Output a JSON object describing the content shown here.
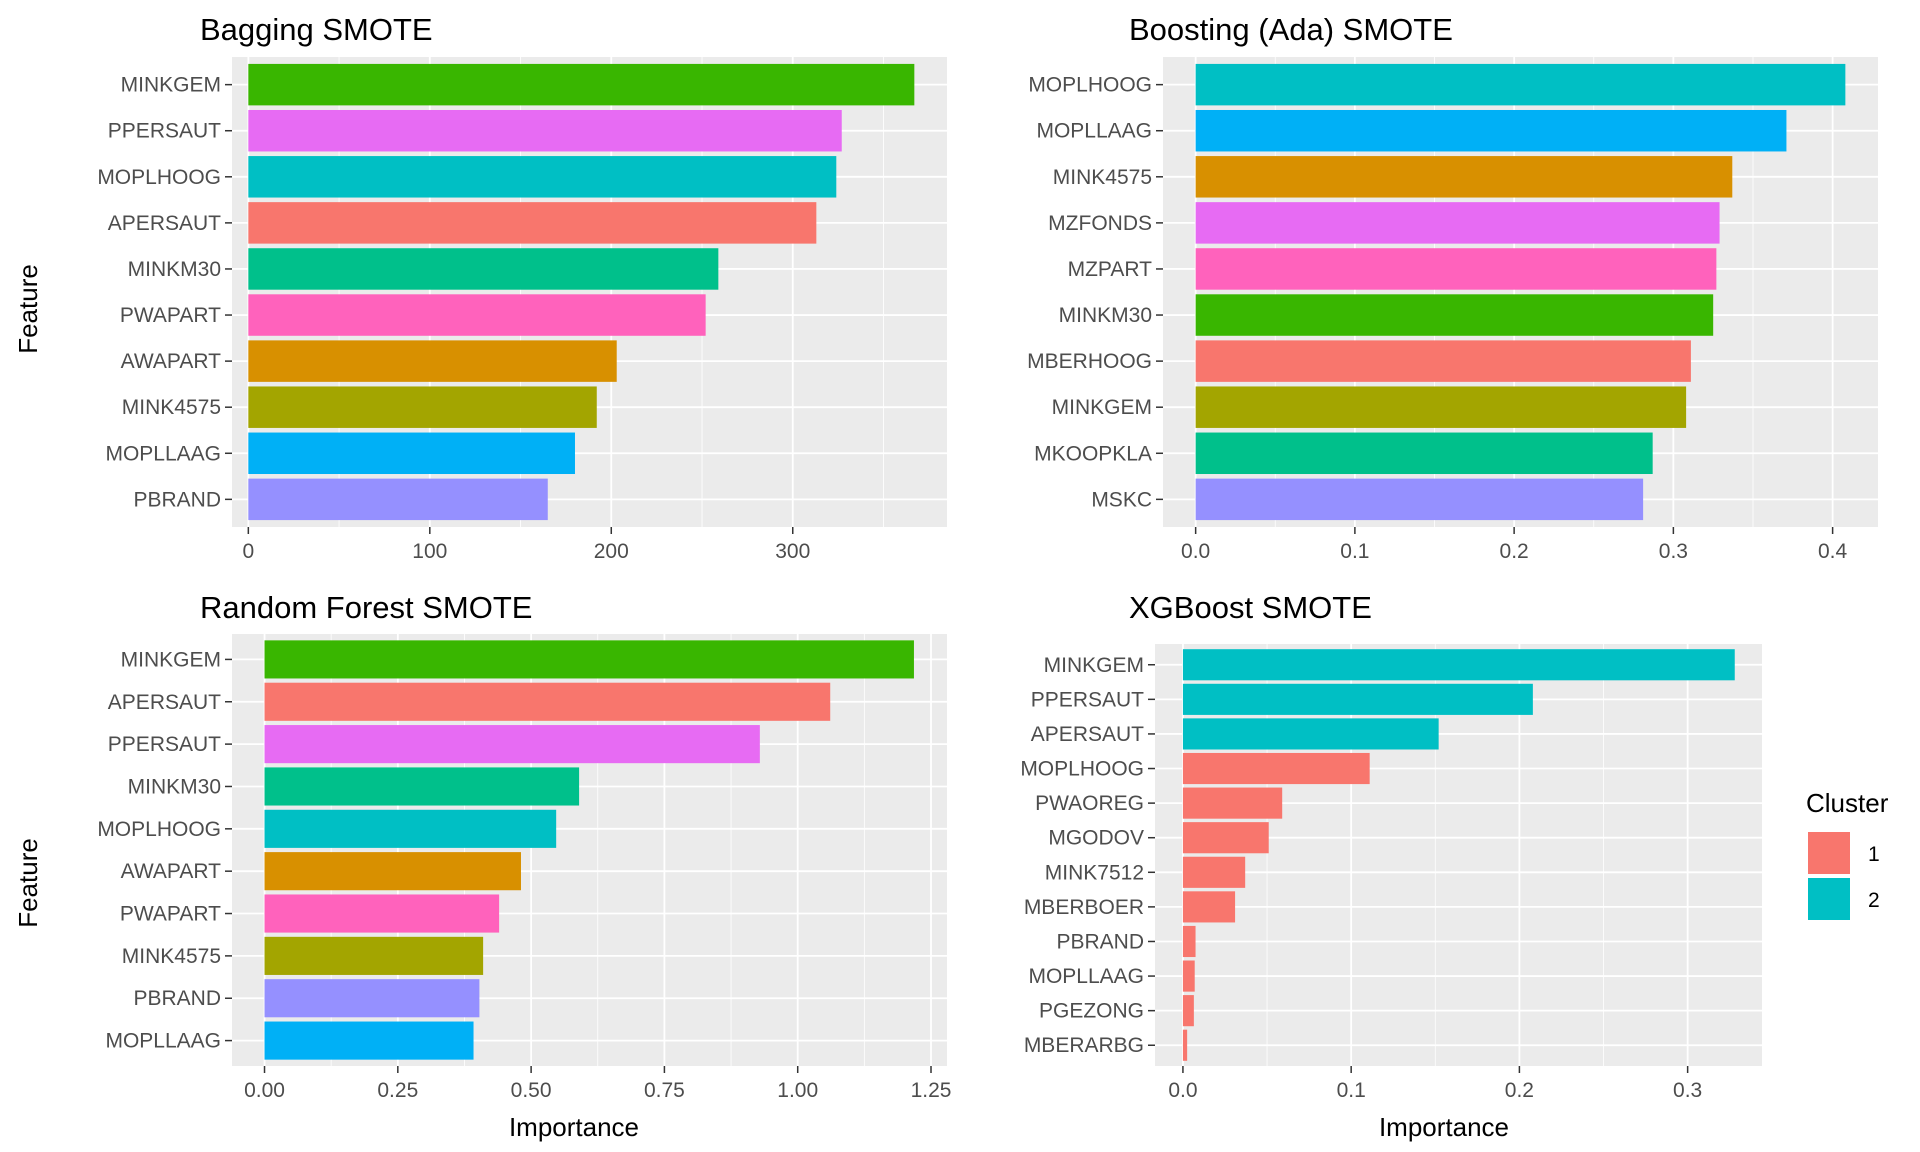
{
  "chart_data": [
    {
      "type": "bar",
      "orientation": "horizontal",
      "title": "Bagging SMOTE",
      "xlabel": "",
      "ylabel": "Feature",
      "xlim": [
        -9,
        385
      ],
      "xticks": [
        0,
        100,
        200,
        300
      ],
      "xtick_labels": [
        "0",
        "100",
        "200",
        "300"
      ],
      "grid": true,
      "categories": [
        "MINKGEM",
        "PPERSAUT",
        "MOPLHOOG",
        "APERSAUT",
        "MINKM30",
        "PWAPART",
        "AWAPART",
        "MINK4575",
        "MOPLLAAG",
        "PBRAND"
      ],
      "values": [
        367,
        327,
        324,
        313,
        259,
        252,
        203,
        192,
        180,
        165
      ],
      "colors": [
        "#39B600",
        "#E76BF3",
        "#00BFC4",
        "#F8766D",
        "#00C08B",
        "#FF62BC",
        "#D89000",
        "#A3A500",
        "#00B0F6",
        "#9590FF"
      ]
    },
    {
      "type": "bar",
      "orientation": "horizontal",
      "title": "Boosting (Ada) SMOTE",
      "xlabel": "",
      "ylabel": "",
      "xlim": [
        -0.0205,
        0.4285
      ],
      "xticks": [
        0.0,
        0.1,
        0.2,
        0.3,
        0.4
      ],
      "xtick_labels": [
        "0.0",
        "0.1",
        "0.2",
        "0.3",
        "0.4"
      ],
      "grid": true,
      "categories": [
        "MOPLHOOG",
        "MOPLLAAG",
        "MINK4575",
        "MZFONDS",
        "MZPART",
        "MINKM30",
        "MBERHOOG",
        "MINKGEM",
        "MKOOPKLA",
        "MSKC"
      ],
      "values": [
        0.408,
        0.371,
        0.337,
        0.329,
        0.327,
        0.325,
        0.311,
        0.308,
        0.287,
        0.281
      ],
      "colors": [
        "#00BFC4",
        "#00B0F6",
        "#D89000",
        "#E76BF3",
        "#FF62BC",
        "#39B600",
        "#F8766D",
        "#A3A500",
        "#00C08B",
        "#9590FF"
      ]
    },
    {
      "type": "bar",
      "orientation": "horizontal",
      "title": "Random Forest SMOTE",
      "xlabel": "Importance",
      "ylabel": "Feature",
      "xlim": [
        -0.061,
        1.28
      ],
      "xticks": [
        0.0,
        0.25,
        0.5,
        0.75,
        1.0,
        1.25
      ],
      "xtick_labels": [
        "0.00",
        "0.25",
        "0.50",
        "0.75",
        "1.00",
        "1.25"
      ],
      "grid": true,
      "categories": [
        "MINKGEM",
        "APERSAUT",
        "PPERSAUT",
        "MINKM30",
        "MOPLHOOG",
        "AWAPART",
        "PWAPART",
        "MINK4575",
        "PBRAND",
        "MOPLLAAG"
      ],
      "values": [
        1.218,
        1.061,
        0.929,
        0.59,
        0.547,
        0.481,
        0.44,
        0.41,
        0.403,
        0.392
      ],
      "colors": [
        "#39B600",
        "#F8766D",
        "#E76BF3",
        "#00C08B",
        "#00BFC4",
        "#D89000",
        "#FF62BC",
        "#A3A500",
        "#9590FF",
        "#00B0F6"
      ]
    },
    {
      "type": "bar",
      "orientation": "horizontal",
      "title": "XGBoost SMOTE",
      "xlabel": "Importance",
      "ylabel": "",
      "xlim": [
        -0.0166,
        0.3442
      ],
      "xticks": [
        0.0,
        0.1,
        0.2,
        0.3
      ],
      "xtick_labels": [
        "0.0",
        "0.1",
        "0.2",
        "0.3"
      ],
      "grid": true,
      "categories": [
        "MINKGEM",
        "PPERSAUT",
        "APERSAUT",
        "MOPLHOOG",
        "PWAOREG",
        "MGODOV",
        "MINK7512",
        "MBERBOER",
        "PBRAND",
        "MOPLLAAG",
        "PGEZONG",
        "MBERARBG"
      ],
      "values": [
        0.328,
        0.208,
        0.152,
        0.111,
        0.059,
        0.051,
        0.037,
        0.031,
        0.0075,
        0.007,
        0.0065,
        0.0025
      ],
      "clusters": [
        "2",
        "2",
        "2",
        "1",
        "1",
        "1",
        "1",
        "1",
        "1",
        "1",
        "1",
        "1"
      ],
      "legend": {
        "title": "Cluster",
        "position": "right",
        "items": [
          {
            "label": "1",
            "color": "#F8766D"
          },
          {
            "label": "2",
            "color": "#00BFC4"
          }
        ]
      }
    }
  ]
}
